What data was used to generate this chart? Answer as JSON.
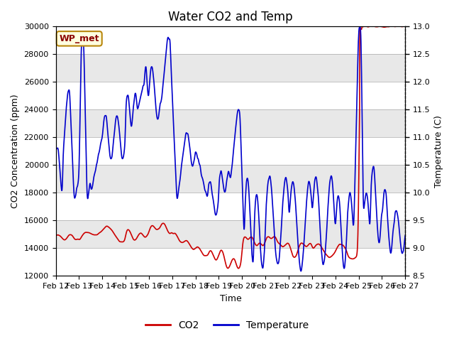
{
  "title": "Water CO2 and Temp",
  "xlabel": "Time",
  "ylabel_left": "CO2 Concentration (ppm)",
  "ylabel_right": "Temperature (C)",
  "ylim_left": [
    12000,
    30000
  ],
  "ylim_right": [
    8.5,
    13.0
  ],
  "x_labels": [
    "Feb 12",
    "Feb 13",
    "Feb 14",
    "Feb 15",
    "Feb 16",
    "Feb 17",
    "Feb 18",
    "Feb 19",
    "Feb 20",
    "Feb 21",
    "Feb 22",
    "Feb 23",
    "Feb 24",
    "Feb 25",
    "Feb 26",
    "Feb 27"
  ],
  "annotation_text": "WP_met",
  "legend_co2": "CO2",
  "legend_temp": "Temperature",
  "co2_color": "#cc0000",
  "temp_color": "#0000cc",
  "bg_color": "#e8e8e8",
  "stripe_color": "#ffffff",
  "title_fontsize": 12,
  "axis_fontsize": 9,
  "tick_fontsize": 8
}
